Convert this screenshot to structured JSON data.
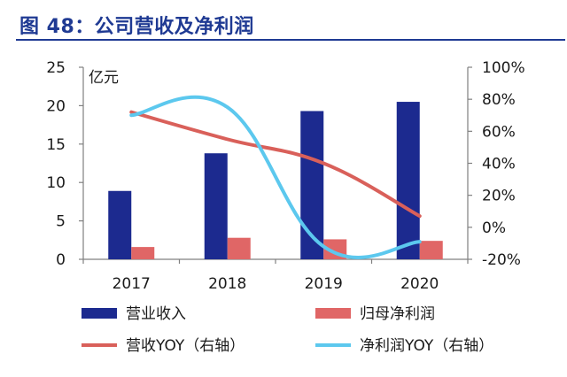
{
  "header": {
    "title": "图 48：公司营收及净利润"
  },
  "chart_data": {
    "type": "bar",
    "categories": [
      "2017",
      "2018",
      "2019",
      "2020"
    ],
    "unit_label": "亿元",
    "y_left": {
      "ticks": [
        "25",
        "20",
        "15",
        "10",
        "5",
        "0"
      ],
      "ylim": [
        0,
        25
      ]
    },
    "y_right": {
      "ticks": [
        "100%",
        "80%",
        "60%",
        "40%",
        "20%",
        "0%",
        "-20%"
      ],
      "ylim": [
        -20,
        100
      ]
    },
    "series": [
      {
        "name": "营业收入",
        "kind": "bar",
        "axis": "left",
        "color": "#1c2a8f",
        "values": [
          8.9,
          13.8,
          19.3,
          20.5
        ]
      },
      {
        "name": "归母净利润",
        "kind": "bar",
        "axis": "left",
        "color": "#e06666",
        "values": [
          1.6,
          2.8,
          2.6,
          2.4
        ]
      },
      {
        "name": "营收YOY（右轴）",
        "kind": "line",
        "axis": "right",
        "color": "#d9605a",
        "values": [
          72,
          55,
          40,
          7
        ]
      },
      {
        "name": "净利润YOY（右轴）",
        "kind": "line",
        "axis": "right",
        "color": "#5cc8ee",
        "values": [
          70,
          75,
          -12,
          -9
        ]
      }
    ],
    "grid": false,
    "legend_position": "bottom"
  }
}
